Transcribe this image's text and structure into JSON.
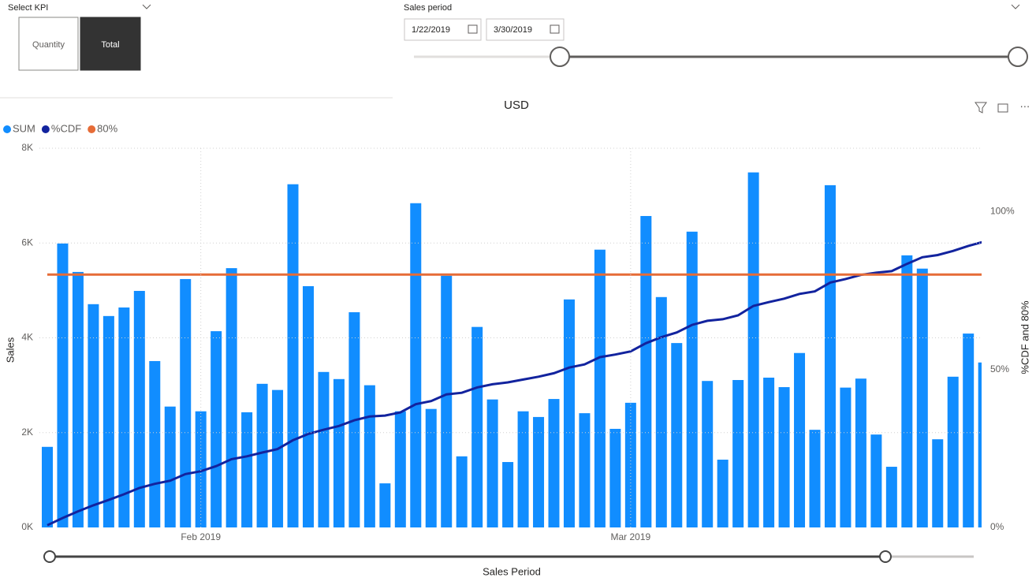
{
  "kpi_slicer": {
    "title": "Select KPI",
    "options": [
      "Quantity",
      "Total"
    ],
    "selected": 1
  },
  "sales_period": {
    "title": "Sales period",
    "start": "1/22/2019",
    "end": "3/30/2019"
  },
  "chart_data": {
    "type": "bar_line",
    "title": "USD",
    "y_label": "Sales",
    "y2_label": "%CDF and 80%",
    "x_label": "Sales Period",
    "categories": [
      null,
      null,
      null,
      null,
      null,
      null,
      null,
      null,
      null,
      null,
      null,
      null,
      null,
      null,
      null,
      null,
      null,
      null,
      null,
      null,
      null,
      null,
      null,
      null,
      null,
      null,
      null,
      null,
      null,
      null,
      null,
      null,
      null,
      null,
      null,
      null,
      null,
      null,
      null,
      null,
      null,
      null,
      null,
      null,
      null,
      null,
      null,
      null,
      null,
      null,
      null,
      null,
      null,
      null,
      null,
      null,
      null,
      null,
      null,
      null,
      null,
      null
    ],
    "xticks": [
      {
        "value": 10,
        "label": "Feb 2019"
      },
      {
        "value": 38,
        "label": "Mar 2019"
      }
    ],
    "series": [
      {
        "name": "SUM",
        "color": "#118dff",
        "type": "bar",
        "values": [
          1700,
          5990,
          5390,
          4710,
          4460,
          4640,
          4990,
          3510,
          2550,
          5240,
          2450,
          4140,
          5470,
          2430,
          3030,
          2900,
          7240,
          5090,
          3280,
          3130,
          4540,
          3000,
          930,
          2450,
          6840,
          2500,
          5310,
          1500,
          4230,
          2700,
          1380,
          2450,
          2330,
          2710,
          4810,
          2410,
          5860,
          2080,
          2630,
          6570,
          4860,
          3890,
          6240,
          3090,
          1430,
          3110,
          7490,
          3160,
          2960,
          3680,
          2060,
          7220,
          2950,
          3140,
          1960,
          1280,
          5740,
          5460,
          1860,
          3180,
          4090,
          3480
        ]
      },
      {
        "name": "%CDF",
        "color": "#12239e",
        "type": "line",
        "axis": "y2",
        "values": [
          0.7,
          3.0,
          5.1,
          7.0,
          8.7,
          10.5,
          12.5,
          13.8,
          14.8,
          16.9,
          17.8,
          19.4,
          21.6,
          22.5,
          23.7,
          24.8,
          27.6,
          29.6,
          30.9,
          32.1,
          33.9,
          35.1,
          35.4,
          36.4,
          39.0,
          40.0,
          42.1,
          42.6,
          44.3,
          45.3,
          45.9,
          46.8,
          47.7,
          48.8,
          50.6,
          51.6,
          53.9,
          54.7,
          55.7,
          58.3,
          60.2,
          61.7,
          64.1,
          65.4,
          65.9,
          67.1,
          70.1,
          71.3,
          72.4,
          73.9,
          74.7,
          77.5,
          78.6,
          79.9,
          80.6,
          81.1,
          83.4,
          85.5,
          86.2,
          87.5,
          89.1,
          90.4
        ]
      },
      {
        "name": "80%",
        "color": "#e66c37",
        "type": "line",
        "axis": "y2",
        "values": [
          80,
          80,
          80,
          80,
          80,
          80,
          80,
          80,
          80,
          80,
          80,
          80,
          80,
          80,
          80,
          80,
          80,
          80,
          80,
          80,
          80,
          80,
          80,
          80,
          80,
          80,
          80,
          80,
          80,
          80,
          80,
          80,
          80,
          80,
          80,
          80,
          80,
          80,
          80,
          80,
          80,
          80,
          80,
          80,
          80,
          80,
          80,
          80,
          80,
          80,
          80,
          80,
          80,
          80,
          80,
          80,
          80,
          80,
          80,
          80,
          80,
          80
        ]
      }
    ],
    "ylim": [
      0,
      8000
    ],
    "yticks": [
      {
        "value": 0,
        "label": "0K"
      },
      {
        "value": 2000,
        "label": "2K"
      },
      {
        "value": 4000,
        "label": "4K"
      },
      {
        "value": 6000,
        "label": "6K"
      },
      {
        "value": 8000,
        "label": "8K"
      }
    ],
    "y2lim": [
      0,
      120
    ],
    "y2ticks": [
      {
        "value": 0,
        "label": "0%"
      },
      {
        "value": 50,
        "label": "50%"
      },
      {
        "value": 100,
        "label": "100%"
      }
    ],
    "grid": true
  }
}
